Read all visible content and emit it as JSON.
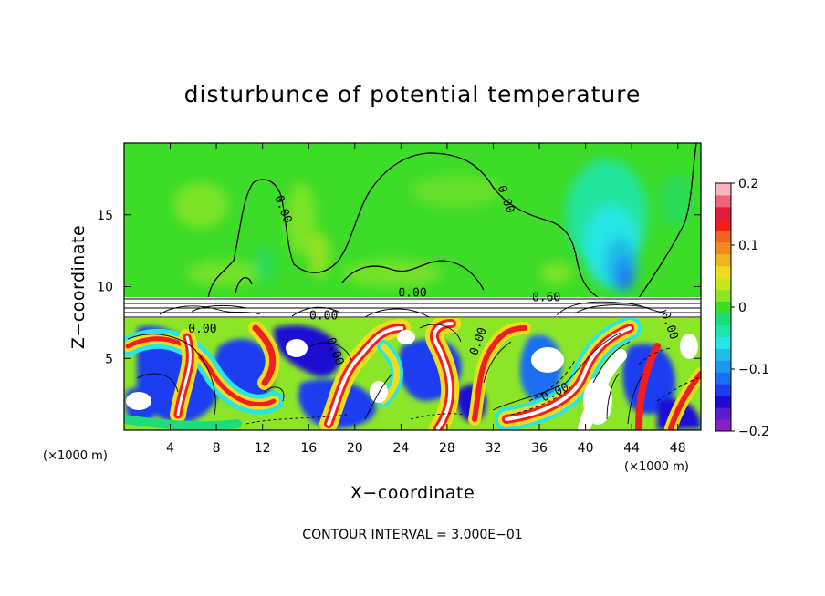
{
  "chart_data": {
    "type": "heatmap",
    "title": "disturbunce of potential temperature",
    "xlabel": "X−coordinate",
    "ylabel": "Z−coordinate",
    "x_unit_left": "(×1000 m)",
    "x_unit_right": "(×1000 m)",
    "xlim": [
      0,
      50
    ],
    "ylim": [
      0,
      20
    ],
    "x_ticks": [
      {
        "value": 4,
        "label": "4"
      },
      {
        "value": 8,
        "label": "8"
      },
      {
        "value": 12,
        "label": "12"
      },
      {
        "value": 16,
        "label": "16"
      },
      {
        "value": 20,
        "label": "20"
      },
      {
        "value": 24,
        "label": "24"
      },
      {
        "value": 28,
        "label": "28"
      },
      {
        "value": 32,
        "label": "32"
      },
      {
        "value": 36,
        "label": "36"
      },
      {
        "value": 40,
        "label": "40"
      },
      {
        "value": 44,
        "label": "44"
      },
      {
        "value": 48,
        "label": "48"
      }
    ],
    "y_ticks": [
      {
        "value": 5,
        "label": "5"
      },
      {
        "value": 10,
        "label": "10"
      },
      {
        "value": 15,
        "label": "15"
      }
    ],
    "colorbar": {
      "min": -0.2,
      "max": 0.2,
      "ticks": [
        {
          "value": 0.2,
          "label": "0.2"
        },
        {
          "value": 0.1,
          "label": "0.1"
        },
        {
          "value": 0,
          "label": "0"
        },
        {
          "value": -0.1,
          "label": "−0.1"
        },
        {
          "value": -0.2,
          "label": "−0.2"
        }
      ],
      "colors": [
        "#8c1ec8",
        "#5a1ec8",
        "#1e0ad2",
        "#1e3cf0",
        "#1e6ef0",
        "#1e96f0",
        "#1ebee6",
        "#28e6e6",
        "#1ee6aa",
        "#1edc78",
        "#3cdc28",
        "#8ce628",
        "#c8e61e",
        "#f0dc1e",
        "#f0b41e",
        "#f08c1e",
        "#f0641e",
        "#f01e1e",
        "#dc1e3c",
        "#f0647a",
        "#fab4be"
      ]
    },
    "contour_labels": [
      {
        "text": "0.00",
        "x": 13.5,
        "z": 15.3
      },
      {
        "text": "0.00",
        "x": 32.8,
        "z": 16.0
      },
      {
        "text": "0.00",
        "x": 25.0,
        "z": 9.3
      },
      {
        "text": "0.60",
        "x": 36.6,
        "z": 9.0
      },
      {
        "text": "0.00",
        "x": 6.8,
        "z": 6.8
      },
      {
        "text": "0.00",
        "x": 17.3,
        "z": 7.7
      },
      {
        "text": "0.00",
        "x": 18.0,
        "z": 5.4
      },
      {
        "text": "0.00",
        "x": 31.0,
        "z": 6.1
      },
      {
        "text": "0.00",
        "x": 37.5,
        "z": 2.4
      },
      {
        "text": "0.00",
        "x": 47.0,
        "z": 7.2
      }
    ],
    "contour_interval_text": "CONTOUR INTERVAL = 3.000E−01",
    "grid": false,
    "legend": "colorbar-right"
  }
}
